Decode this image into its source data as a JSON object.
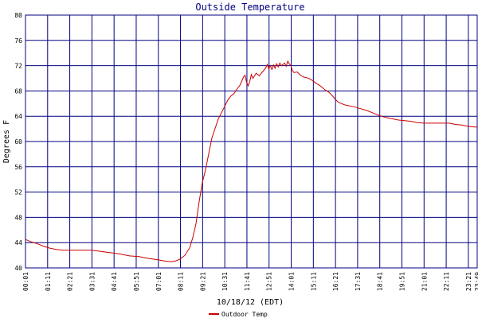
{
  "chart_data": {
    "type": "line",
    "title": "Outside Temperature",
    "xlabel": "10/18/12 (EDT)",
    "ylabel": "Degrees F",
    "ylim": [
      40,
      80
    ],
    "yticks": [
      40,
      44,
      48,
      52,
      56,
      60,
      64,
      68,
      72,
      76,
      80
    ],
    "xticks": [
      "00:01",
      "01:11",
      "02:21",
      "03:31",
      "04:41",
      "05:51",
      "07:01",
      "08:11",
      "09:21",
      "10:31",
      "11:41",
      "12:51",
      "14:01",
      "15:11",
      "16:21",
      "17:31",
      "18:41",
      "19:51",
      "21:01",
      "22:11",
      "23:21",
      "23:49"
    ],
    "grid": true,
    "legend_position": "bottom",
    "series": [
      {
        "name": "Outdoor Temp",
        "color": "#cc0000",
        "values": [
          [
            "00:01",
            44.5
          ],
          [
            "00:20",
            44.1
          ],
          [
            "00:40",
            43.8
          ],
          [
            "01:00",
            43.4
          ],
          [
            "01:20",
            43.1
          ],
          [
            "01:40",
            42.9
          ],
          [
            "02:00",
            42.8
          ],
          [
            "02:30",
            42.8
          ],
          [
            "03:00",
            42.8
          ],
          [
            "03:30",
            42.8
          ],
          [
            "04:00",
            42.6
          ],
          [
            "04:30",
            42.4
          ],
          [
            "05:00",
            42.2
          ],
          [
            "05:30",
            41.9
          ],
          [
            "06:00",
            41.8
          ],
          [
            "06:30",
            41.5
          ],
          [
            "07:00",
            41.3
          ],
          [
            "07:20",
            41.1
          ],
          [
            "07:40",
            41.0
          ],
          [
            "07:55",
            41.1
          ],
          [
            "08:10",
            41.4
          ],
          [
            "08:25",
            42.0
          ],
          [
            "08:40",
            43.2
          ],
          [
            "08:50",
            44.8
          ],
          [
            "09:00",
            47.0
          ],
          [
            "09:10",
            50.5
          ],
          [
            "09:20",
            53.5
          ],
          [
            "09:30",
            55.5
          ],
          [
            "09:40",
            58.0
          ],
          [
            "09:50",
            60.5
          ],
          [
            "10:00",
            62.0
          ],
          [
            "10:10",
            63.5
          ],
          [
            "10:20",
            64.5
          ],
          [
            "10:30",
            65.5
          ],
          [
            "10:40",
            66.5
          ],
          [
            "10:50",
            67.2
          ],
          [
            "11:00",
            67.6
          ],
          [
            "11:10",
            68.3
          ],
          [
            "11:20",
            69.0
          ],
          [
            "11:30",
            70.2
          ],
          [
            "11:35",
            70.5
          ],
          [
            "11:40",
            69.4
          ],
          [
            "11:45",
            68.8
          ],
          [
            "11:50",
            69.5
          ],
          [
            "11:55",
            70.6
          ],
          [
            "12:00",
            70.0
          ],
          [
            "12:10",
            70.8
          ],
          [
            "12:20",
            70.4
          ],
          [
            "12:30",
            71.0
          ],
          [
            "12:40",
            71.6
          ],
          [
            "12:45",
            72.2
          ],
          [
            "12:50",
            71.5
          ],
          [
            "12:55",
            72.0
          ],
          [
            "13:00",
            71.4
          ],
          [
            "13:05",
            72.1
          ],
          [
            "13:10",
            71.6
          ],
          [
            "13:15",
            72.3
          ],
          [
            "13:20",
            71.8
          ],
          [
            "13:25",
            72.4
          ],
          [
            "13:30",
            72.0
          ],
          [
            "13:35",
            72.2
          ],
          [
            "13:40",
            72.4
          ],
          [
            "13:45",
            71.9
          ],
          [
            "13:50",
            72.7
          ],
          [
            "13:55",
            72.3
          ],
          [
            "14:00",
            72.0
          ],
          [
            "14:05",
            71.2
          ],
          [
            "14:10",
            70.9
          ],
          [
            "14:20",
            71.0
          ],
          [
            "14:30",
            70.5
          ],
          [
            "14:40",
            70.2
          ],
          [
            "14:50",
            70.1
          ],
          [
            "15:00",
            69.9
          ],
          [
            "15:10",
            69.6
          ],
          [
            "15:20",
            69.2
          ],
          [
            "15:30",
            68.9
          ],
          [
            "15:40",
            68.5
          ],
          [
            "15:50",
            68.1
          ],
          [
            "16:00",
            67.8
          ],
          [
            "16:10",
            67.3
          ],
          [
            "16:20",
            66.7
          ],
          [
            "16:30",
            66.2
          ],
          [
            "16:40",
            66.0
          ],
          [
            "16:50",
            65.8
          ],
          [
            "17:00",
            65.7
          ],
          [
            "17:20",
            65.5
          ],
          [
            "17:40",
            65.2
          ],
          [
            "18:00",
            64.9
          ],
          [
            "18:20",
            64.5
          ],
          [
            "18:40",
            64.1
          ],
          [
            "19:00",
            63.8
          ],
          [
            "19:20",
            63.6
          ],
          [
            "19:40",
            63.4
          ],
          [
            "20:00",
            63.3
          ],
          [
            "20:20",
            63.2
          ],
          [
            "20:40",
            63.0
          ],
          [
            "21:00",
            62.9
          ],
          [
            "21:20",
            62.9
          ],
          [
            "21:40",
            62.9
          ],
          [
            "22:00",
            62.9
          ],
          [
            "22:20",
            62.9
          ],
          [
            "22:40",
            62.7
          ],
          [
            "23:00",
            62.6
          ],
          [
            "23:20",
            62.4
          ],
          [
            "23:40",
            62.3
          ],
          [
            "23:49",
            62.3
          ]
        ]
      }
    ]
  }
}
